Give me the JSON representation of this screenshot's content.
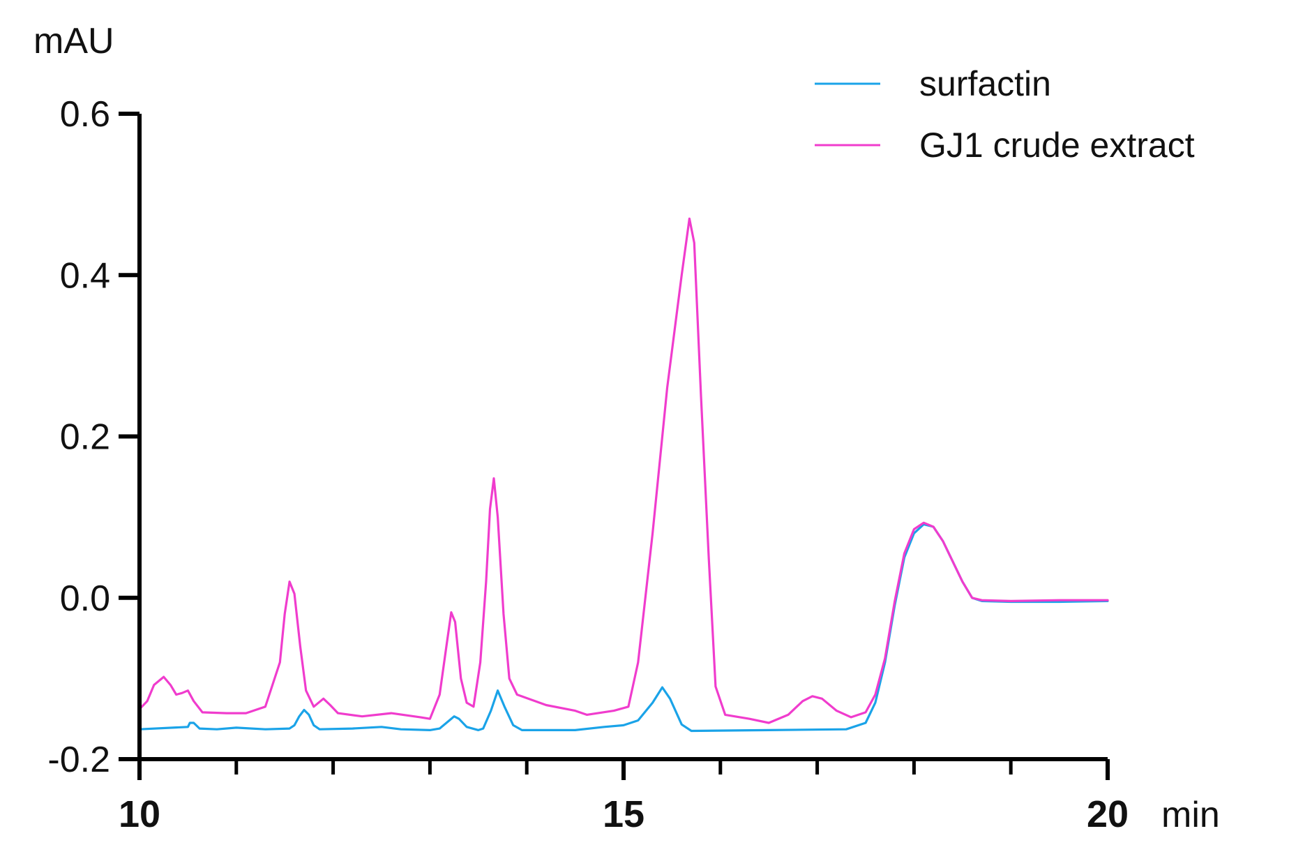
{
  "chart_data": {
    "type": "line",
    "ylabel": "mAU",
    "xlabel": "min",
    "xlim": [
      10,
      20
    ],
    "ylim": [
      -0.2,
      0.6
    ],
    "x_ticks": [
      10,
      15,
      20
    ],
    "x_tick_labels": [
      "10",
      "15",
      "20"
    ],
    "x_minor_ticks": [
      11,
      12,
      13,
      14,
      16,
      17,
      18,
      19
    ],
    "y_ticks": [
      -0.2,
      0.0,
      0.2,
      0.4,
      0.6
    ],
    "y_tick_labels": [
      "-0.2",
      "0.0",
      "0.2",
      "0.4",
      "0.6"
    ],
    "grid": false,
    "legend_position": "top-right",
    "series": [
      {
        "name": "surfactin",
        "color": "#1aa3e8",
        "points": [
          [
            10.0,
            -0.163
          ],
          [
            10.5,
            -0.16
          ],
          [
            10.52,
            -0.155
          ],
          [
            10.56,
            -0.155
          ],
          [
            10.62,
            -0.162
          ],
          [
            10.8,
            -0.163
          ],
          [
            11.0,
            -0.161
          ],
          [
            11.3,
            -0.163
          ],
          [
            11.55,
            -0.162
          ],
          [
            11.6,
            -0.158
          ],
          [
            11.65,
            -0.147
          ],
          [
            11.7,
            -0.139
          ],
          [
            11.75,
            -0.145
          ],
          [
            11.8,
            -0.158
          ],
          [
            11.86,
            -0.163
          ],
          [
            12.2,
            -0.162
          ],
          [
            12.5,
            -0.16
          ],
          [
            12.7,
            -0.163
          ],
          [
            13.0,
            -0.164
          ],
          [
            13.1,
            -0.162
          ],
          [
            13.2,
            -0.152
          ],
          [
            13.25,
            -0.147
          ],
          [
            13.3,
            -0.15
          ],
          [
            13.38,
            -0.16
          ],
          [
            13.5,
            -0.164
          ],
          [
            13.55,
            -0.162
          ],
          [
            13.63,
            -0.14
          ],
          [
            13.7,
            -0.115
          ],
          [
            13.77,
            -0.135
          ],
          [
            13.86,
            -0.158
          ],
          [
            13.95,
            -0.164
          ],
          [
            14.5,
            -0.164
          ],
          [
            14.8,
            -0.16
          ],
          [
            15.0,
            -0.158
          ],
          [
            15.15,
            -0.152
          ],
          [
            15.3,
            -0.13
          ],
          [
            15.4,
            -0.111
          ],
          [
            15.48,
            -0.125
          ],
          [
            15.6,
            -0.157
          ],
          [
            15.7,
            -0.165
          ],
          [
            16.5,
            -0.164
          ],
          [
            17.3,
            -0.163
          ],
          [
            17.5,
            -0.155
          ],
          [
            17.6,
            -0.13
          ],
          [
            17.7,
            -0.08
          ],
          [
            17.8,
            -0.01
          ],
          [
            17.9,
            0.05
          ],
          [
            18.0,
            0.08
          ],
          [
            18.1,
            0.091
          ],
          [
            18.2,
            0.088
          ],
          [
            18.3,
            0.07
          ],
          [
            18.4,
            0.045
          ],
          [
            18.5,
            0.02
          ],
          [
            18.6,
            0.0
          ],
          [
            18.7,
            -0.004
          ],
          [
            19.0,
            -0.005
          ],
          [
            19.5,
            -0.005
          ],
          [
            20.0,
            -0.004
          ]
        ]
      },
      {
        "name": "GJ1 crude extract",
        "color": "#f03ccd",
        "points": [
          [
            10.0,
            -0.138
          ],
          [
            10.08,
            -0.128
          ],
          [
            10.15,
            -0.108
          ],
          [
            10.25,
            -0.098
          ],
          [
            10.32,
            -0.108
          ],
          [
            10.38,
            -0.12
          ],
          [
            10.44,
            -0.118
          ],
          [
            10.5,
            -0.115
          ],
          [
            10.56,
            -0.128
          ],
          [
            10.65,
            -0.142
          ],
          [
            10.9,
            -0.143
          ],
          [
            11.1,
            -0.143
          ],
          [
            11.3,
            -0.135
          ],
          [
            11.45,
            -0.08
          ],
          [
            11.5,
            -0.02
          ],
          [
            11.55,
            0.02
          ],
          [
            11.6,
            0.005
          ],
          [
            11.66,
            -0.06
          ],
          [
            11.72,
            -0.115
          ],
          [
            11.8,
            -0.135
          ],
          [
            11.9,
            -0.125
          ],
          [
            11.97,
            -0.133
          ],
          [
            12.05,
            -0.143
          ],
          [
            12.3,
            -0.147
          ],
          [
            12.6,
            -0.143
          ],
          [
            12.9,
            -0.148
          ],
          [
            13.0,
            -0.15
          ],
          [
            13.1,
            -0.12
          ],
          [
            13.17,
            -0.06
          ],
          [
            13.22,
            -0.018
          ],
          [
            13.26,
            -0.03
          ],
          [
            13.32,
            -0.1
          ],
          [
            13.38,
            -0.13
          ],
          [
            13.45,
            -0.135
          ],
          [
            13.52,
            -0.08
          ],
          [
            13.58,
            0.02
          ],
          [
            13.62,
            0.11
          ],
          [
            13.66,
            0.148
          ],
          [
            13.7,
            0.1
          ],
          [
            13.76,
            -0.02
          ],
          [
            13.82,
            -0.1
          ],
          [
            13.9,
            -0.12
          ],
          [
            14.2,
            -0.133
          ],
          [
            14.5,
            -0.14
          ],
          [
            14.62,
            -0.145
          ],
          [
            14.9,
            -0.14
          ],
          [
            15.05,
            -0.135
          ],
          [
            15.15,
            -0.08
          ],
          [
            15.3,
            0.08
          ],
          [
            15.45,
            0.26
          ],
          [
            15.6,
            0.4
          ],
          [
            15.68,
            0.47
          ],
          [
            15.73,
            0.44
          ],
          [
            15.8,
            0.25
          ],
          [
            15.88,
            0.05
          ],
          [
            15.95,
            -0.11
          ],
          [
            16.05,
            -0.145
          ],
          [
            16.3,
            -0.15
          ],
          [
            16.5,
            -0.155
          ],
          [
            16.7,
            -0.145
          ],
          [
            16.85,
            -0.128
          ],
          [
            16.95,
            -0.122
          ],
          [
            17.05,
            -0.125
          ],
          [
            17.2,
            -0.14
          ],
          [
            17.35,
            -0.148
          ],
          [
            17.5,
            -0.142
          ],
          [
            17.6,
            -0.12
          ],
          [
            17.7,
            -0.075
          ],
          [
            17.8,
            -0.005
          ],
          [
            17.9,
            0.055
          ],
          [
            18.0,
            0.085
          ],
          [
            18.1,
            0.093
          ],
          [
            18.2,
            0.088
          ],
          [
            18.3,
            0.07
          ],
          [
            18.4,
            0.045
          ],
          [
            18.5,
            0.02
          ],
          [
            18.6,
            0.0
          ],
          [
            18.7,
            -0.003
          ],
          [
            19.0,
            -0.004
          ],
          [
            19.5,
            -0.003
          ],
          [
            20.0,
            -0.003
          ]
        ]
      }
    ]
  }
}
